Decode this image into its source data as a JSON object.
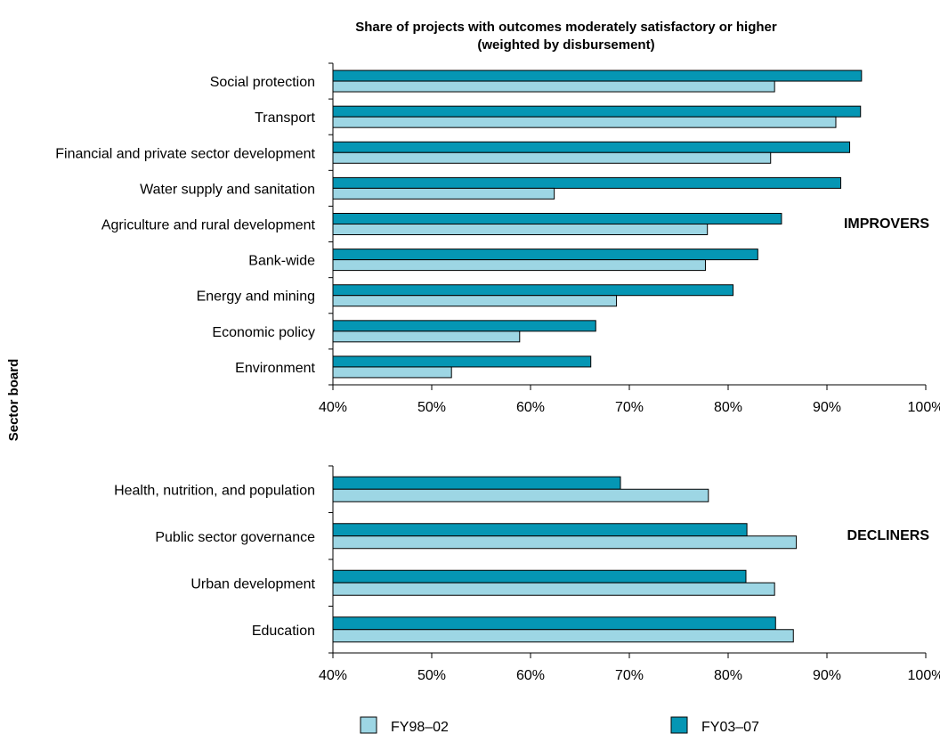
{
  "chart_data": {
    "type": "bar",
    "orientation": "horizontal",
    "title": "Share of projects with outcomes moderately satisfactory or higher",
    "subtitle": "(weighted by disbursement)",
    "ylabel": "Sector board",
    "xlim": [
      40,
      100
    ],
    "x_ticks": [
      "40%",
      "50%",
      "60%",
      "70%",
      "80%",
      "90%",
      "100%"
    ],
    "grid": false,
    "legend": {
      "position": "bottom",
      "items": [
        {
          "name": "FY98–02",
          "color": "#9dd6e4"
        },
        {
          "name": "FY03–07",
          "color": "#0596b4"
        }
      ]
    },
    "panels": [
      {
        "group_label": "IMPROVERS",
        "categories": [
          "Social protection",
          "Transport",
          "Financial and private sector development",
          "Water supply and sanitation",
          "Agriculture and rural development",
          "Bank-wide",
          "Energy and mining",
          "Economic policy",
          "Environment"
        ],
        "series": [
          {
            "name": "FY03–07",
            "values": [
              93.5,
              93.4,
              92.3,
              91.4,
              85.4,
              83.0,
              80.5,
              66.6,
              66.1
            ]
          },
          {
            "name": "FY98–02",
            "values": [
              84.7,
              90.9,
              84.3,
              62.4,
              77.9,
              77.7,
              68.7,
              58.9,
              52.0
            ]
          }
        ]
      },
      {
        "group_label": "DECLINERS",
        "categories": [
          "Health, nutrition, and population",
          "Public sector governance",
          "Urban development",
          "Education"
        ],
        "series": [
          {
            "name": "FY03–07",
            "values": [
              69.1,
              81.9,
              81.8,
              84.8
            ]
          },
          {
            "name": "FY98–02",
            "values": [
              78.0,
              86.9,
              84.7,
              86.6
            ]
          }
        ]
      }
    ]
  }
}
